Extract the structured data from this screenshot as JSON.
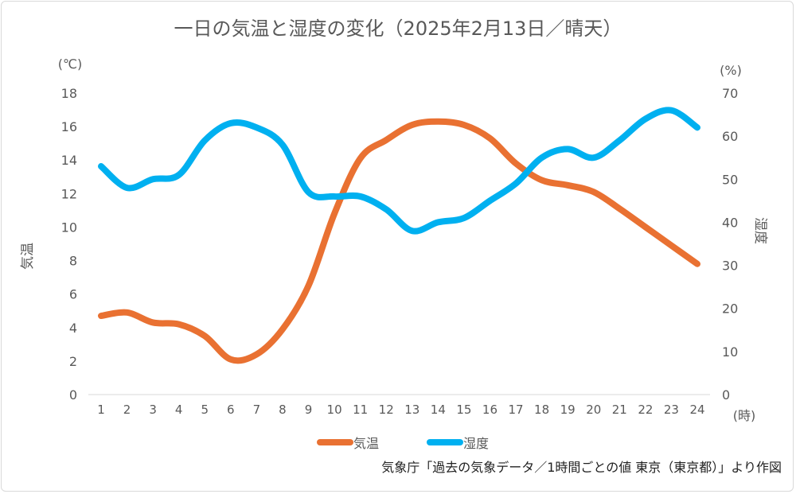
{
  "chart_data": {
    "type": "line",
    "title": "一日の気温と湿度の変化（2025年2月13日／晴天）",
    "x_unit": "(時)",
    "categories": [
      1,
      2,
      3,
      4,
      5,
      6,
      7,
      8,
      9,
      10,
      11,
      12,
      13,
      14,
      15,
      16,
      17,
      18,
      19,
      20,
      21,
      22,
      23,
      24
    ],
    "y_left": {
      "label": "気温",
      "unit": "(℃)",
      "range": [
        0,
        18
      ],
      "ticks": [
        0,
        2,
        4,
        6,
        8,
        10,
        12,
        14,
        16,
        18
      ]
    },
    "y_right": {
      "label": "湿度",
      "unit": "(%)",
      "range": [
        0,
        70
      ],
      "ticks": [
        0,
        10,
        20,
        30,
        40,
        50,
        60,
        70
      ]
    },
    "grid": false,
    "legend_position": "bottom",
    "series": [
      {
        "name": "気温",
        "axis": "left",
        "color": "#E97132",
        "values": [
          4.7,
          4.9,
          4.3,
          4.2,
          3.5,
          2.1,
          2.4,
          3.9,
          6.5,
          10.8,
          14.1,
          15.2,
          16.1,
          16.3,
          16.1,
          15.3,
          13.8,
          12.8,
          12.5,
          12.1,
          11.1,
          10.0,
          8.9,
          7.8
        ]
      },
      {
        "name": "湿度",
        "axis": "right",
        "color": "#00B0F0",
        "values": [
          53,
          48,
          50,
          51,
          59,
          63,
          62,
          58,
          47,
          46,
          46,
          43,
          38,
          40,
          41,
          45,
          49,
          55,
          57,
          55,
          59,
          64,
          66,
          62
        ]
      }
    ],
    "source": "気象庁「過去の気象データ／1時間ごとの値 東京（東京都）」より作図"
  }
}
